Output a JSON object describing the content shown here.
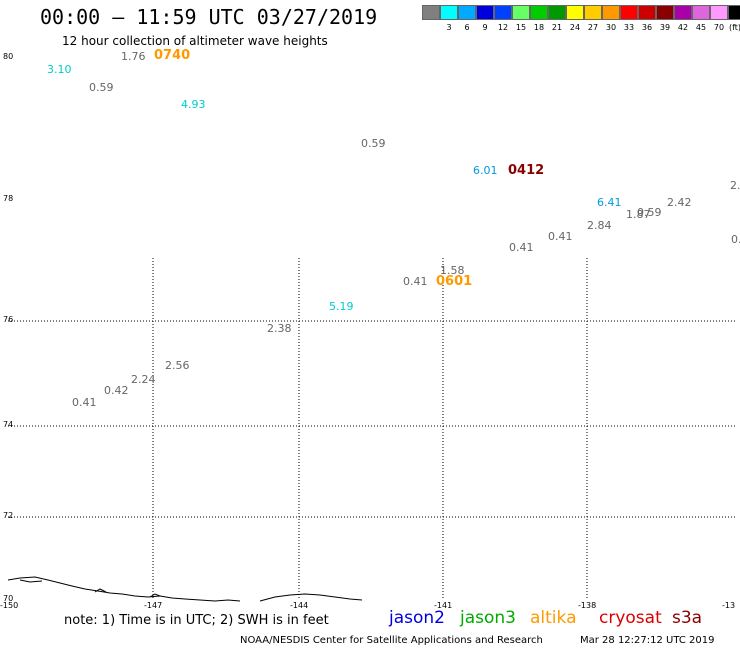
{
  "header": {
    "title": "00:00 – 11:59 UTC 03/27/2019",
    "subtitle": "12 hour collection of altimeter wave heights"
  },
  "colorbar": {
    "unit": "(ft)",
    "swatches": [
      {
        "color": "#808080",
        "label": ""
      },
      {
        "color": "#00ffff",
        "label": "3"
      },
      {
        "color": "#00aaff",
        "label": "6"
      },
      {
        "color": "#0000dd",
        "label": "9"
      },
      {
        "color": "#0040ff",
        "label": "12"
      },
      {
        "color": "#66ff66",
        "label": "15"
      },
      {
        "color": "#00cc00",
        "label": "18"
      },
      {
        "color": "#009900",
        "label": "21"
      },
      {
        "color": "#ffff00",
        "label": "24"
      },
      {
        "color": "#ffcc00",
        "label": "27"
      },
      {
        "color": "#ff9900",
        "label": "30"
      },
      {
        "color": "#ff0000",
        "label": "33"
      },
      {
        "color": "#cc0000",
        "label": "36"
      },
      {
        "color": "#880000",
        "label": "39"
      },
      {
        "color": "#aa00aa",
        "label": "42"
      },
      {
        "color": "#dd66dd",
        "label": "45"
      },
      {
        "color": "#ff99ff",
        "label": "70"
      },
      {
        "color": "#000000",
        "label": ""
      }
    ]
  },
  "map": {
    "lat_labels": [
      "80",
      "78",
      "76",
      "74",
      "72",
      "70"
    ],
    "lon_labels": [
      "-150",
      "-147",
      "-144",
      "-141",
      "-138",
      "-13"
    ],
    "wave_heights": [
      {
        "text": "3.10",
        "color": "#00cccc"
      },
      {
        "text": "1.76",
        "color": "#666666"
      },
      {
        "text": "0.59",
        "color": "#666666"
      },
      {
        "text": "4.93",
        "color": "#00cccc"
      },
      {
        "text": "0.59",
        "color": "#666666"
      },
      {
        "text": "6.01",
        "color": "#0099dd"
      },
      {
        "text": "2.",
        "color": "#666666"
      },
      {
        "text": "6.41",
        "color": "#0099dd"
      },
      {
        "text": "2.42",
        "color": "#666666"
      },
      {
        "text": "1.87",
        "color": "#666666"
      },
      {
        "text": "0.59",
        "color": "#666666"
      },
      {
        "text": "2.84",
        "color": "#666666"
      },
      {
        "text": "0.41",
        "color": "#666666"
      },
      {
        "text": "0.41",
        "color": "#666666"
      },
      {
        "text": "0.",
        "color": "#666666"
      },
      {
        "text": "1.58",
        "color": "#666666"
      },
      {
        "text": "0.41",
        "color": "#666666"
      },
      {
        "text": "5.19",
        "color": "#00cccc"
      },
      {
        "text": "2.38",
        "color": "#666666"
      },
      {
        "text": "2.56",
        "color": "#666666"
      },
      {
        "text": "2.24",
        "color": "#666666"
      },
      {
        "text": "0.42",
        "color": "#666666"
      },
      {
        "text": "0.41",
        "color": "#666666"
      }
    ],
    "times": [
      {
        "text": "0740",
        "color": "#ff9900"
      },
      {
        "text": "0412",
        "color": "#880000"
      },
      {
        "text": "0601",
        "color": "#ff9900"
      }
    ]
  },
  "footer": {
    "note": "note: 1) Time is in UTC; 2) SWH is in feet",
    "satellites": [
      {
        "name": "jason2",
        "color": "#0000dd"
      },
      {
        "name": "jason3",
        "color": "#00aa00"
      },
      {
        "name": "altika",
        "color": "#ff9900"
      },
      {
        "name": "cryosat",
        "color": "#dd0000"
      },
      {
        "name": "s3a",
        "color": "#880000"
      }
    ],
    "credit": "NOAA/NESDIS Center for Satellite Applications and Research",
    "timestamp": "Mar 28 12:27:12 UTC 2019"
  }
}
